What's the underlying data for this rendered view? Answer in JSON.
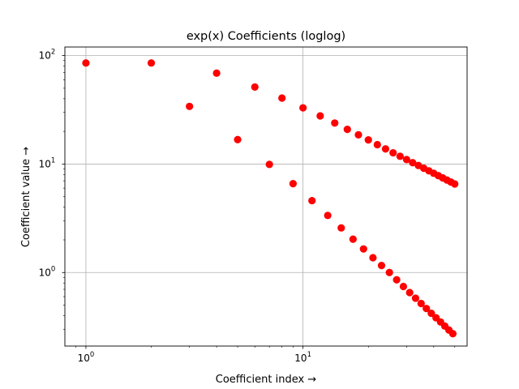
{
  "chart_data": {
    "type": "scatter",
    "title": "exp(x) Coefficients (loglog)",
    "xlabel": "Coefficient index  →",
    "ylabel": "Coefficient value  →",
    "xscale": "log",
    "yscale": "log",
    "xlim": [
      0.8,
      57
    ],
    "ylim": [
      0.21,
      120
    ],
    "x_ticks": [
      {
        "value": 1,
        "base": "10",
        "exp": "0"
      },
      {
        "value": 10,
        "base": "10",
        "exp": "1"
      }
    ],
    "y_ticks": [
      {
        "value": 1,
        "base": "10",
        "exp": "0"
      },
      {
        "value": 10,
        "base": "10",
        "exp": "1"
      },
      {
        "value": 100,
        "base": "10",
        "exp": "2"
      }
    ],
    "grid": true,
    "marker_color": "#ff0000",
    "series": [
      {
        "x": [
          1,
          2,
          4,
          6,
          8,
          10,
          12,
          14,
          16,
          18,
          20,
          22,
          24,
          26,
          28,
          30,
          32,
          34,
          36,
          38,
          40,
          42,
          44,
          46,
          48,
          50
        ],
        "y": [
          85.5,
          85.5,
          68.9,
          51.3,
          40.6,
          33.0,
          27.8,
          23.9,
          20.9,
          18.6,
          16.7,
          15.1,
          13.8,
          12.7,
          11.8,
          11.0,
          10.3,
          9.7,
          9.15,
          8.66,
          8.22,
          7.82,
          7.46,
          7.13,
          6.83,
          6.55
        ]
      },
      {
        "x": [
          3,
          5,
          7,
          9,
          11,
          13,
          15,
          17,
          19,
          21,
          23,
          25,
          27,
          29,
          31,
          33,
          35,
          37,
          39,
          41,
          43,
          45,
          47,
          49
        ],
        "y": [
          34.0,
          16.8,
          9.93,
          6.6,
          4.6,
          3.36,
          2.58,
          2.03,
          1.65,
          1.37,
          1.16,
          1.0,
          0.857,
          0.744,
          0.654,
          0.58,
          0.518,
          0.466,
          0.421,
          0.383,
          0.35,
          0.321,
          0.295,
          0.273
        ]
      }
    ]
  }
}
